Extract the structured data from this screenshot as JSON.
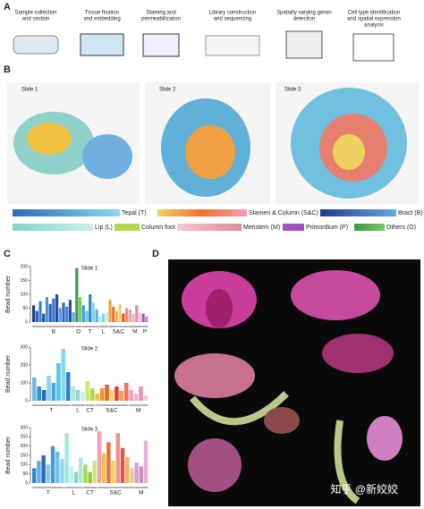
{
  "panel_a": {
    "label": "A",
    "steps": [
      [
        "Sample collection",
        "and section"
      ],
      [
        "Tissue fixation",
        "and embedding"
      ],
      [
        "Staining and",
        "permeabilization"
      ],
      [
        "Library construction",
        "and sequencing"
      ],
      [
        "Spatially varying genes",
        "detection"
      ],
      [
        "Cell type identification",
        "and spatial expression",
        "analysis"
      ]
    ]
  },
  "panel_b": {
    "label": "B",
    "slides": [
      "Slide 1",
      "Slide 2",
      "Slide 3"
    ],
    "legend": [
      "Tepal (T)",
      "Stamen & Column (S&C)",
      "Bract (B)",
      "Lip (L)",
      "Column foot",
      "Meristem (M)",
      "Primordium (P)",
      "Others (O)"
    ]
  },
  "panel_c": {
    "label": "C",
    "y_label": "Bead number",
    "charts": [
      {
        "title": "Slide 1",
        "ylim": [
          0,
          200
        ],
        "yticks": [
          0,
          50,
          100,
          150,
          200
        ],
        "groups": [
          {
            "label": "B",
            "values": [
              60,
              40,
              75,
              30,
              90,
              65,
              85,
              100,
              50,
              70,
              55,
              80,
              35
            ],
            "colors": [
              "#1f3d8a",
              "#2a5db0",
              "#3b7dd8",
              "#1d4f91",
              "#4a8fe0",
              "#2860b8",
              "#3570c8",
              "#1e4ea8",
              "#5a9ae0",
              "#2f68c0",
              "#4680d0",
              "#2255a5",
              "#6aa5e5"
            ]
          },
          {
            "label": "O",
            "values": [
              195,
              90
            ],
            "colors": [
              "#3a9a3a",
              "#7cc66a"
            ]
          },
          {
            "label": "T",
            "values": [
              60,
              40,
              100,
              70,
              45
            ],
            "colors": [
              "#3aa0d8",
              "#70c0e8",
              "#2888c8",
              "#90d0f0",
              "#50b0e0"
            ]
          },
          {
            "label": "L",
            "values": [
              20,
              30,
              35
            ],
            "colors": [
              "#a8e8e8",
              "#80d8d8",
              "#c0f0f0"
            ]
          },
          {
            "label": "S&C",
            "values": [
              80,
              55,
              40,
              65,
              30,
              50
            ],
            "colors": [
              "#f0a030",
              "#f07030",
              "#e8c040",
              "#f0d060",
              "#e85040",
              "#f09060"
            ]
          },
          {
            "label": "M",
            "values": [
              45,
              30,
              60,
              35
            ],
            "colors": [
              "#f0a0b0",
              "#e8b8c0",
              "#f08898",
              "#f8c8d0"
            ]
          },
          {
            "label": "P",
            "values": [
              30,
              20
            ],
            "colors": [
              "#a050c0",
              "#c080d8"
            ]
          }
        ]
      },
      {
        "title": "Slide 2",
        "ylim": [
          0,
          300
        ],
        "yticks": [
          0,
          100,
          200,
          300
        ],
        "groups": [
          {
            "label": "T",
            "values": [
              130,
              80,
              60,
              140,
              100,
              210,
              290,
              160
            ],
            "colors": [
              "#70b8e8",
              "#3a90d0",
              "#2070b8",
              "#90d0f0",
              "#4aa8e0",
              "#60c0e8",
              "#80d8f0",
              "#3080c8"
            ]
          },
          {
            "label": "L",
            "values": [
              80,
              60,
              50
            ],
            "colors": [
              "#b0e8e0",
              "#90d8d0",
              "#c8f0e8"
            ]
          },
          {
            "label": "CT",
            "values": [
              110,
              70
            ],
            "colors": [
              "#c8e870",
              "#a8d850"
            ]
          },
          {
            "label": "S&C",
            "values": [
              40,
              70,
              90,
              60,
              80,
              55,
              100
            ],
            "colors": [
              "#f0c040",
              "#f09030",
              "#e86030",
              "#f0d860",
              "#e84040",
              "#f0a050",
              "#f07060"
            ]
          },
          {
            "label": "M",
            "values": [
              60,
              40,
              80,
              30
            ],
            "colors": [
              "#f0a0c0",
              "#e8b8d0",
              "#f090b0",
              "#f8c8d8"
            ]
          }
        ]
      },
      {
        "title": "Slide 3",
        "ylim": [
          0,
          300
        ],
        "yticks": [
          0,
          50,
          100,
          150,
          200,
          250,
          300
        ],
        "groups": [
          {
            "label": "T",
            "values": [
              80,
              120,
              150,
              100,
              200,
              170,
              130
            ],
            "colors": [
              "#3a80c8",
              "#60b0e0",
              "#2a6ab8",
              "#80c8f0",
              "#4a98d8",
              "#70c0e8",
              "#90d8f0"
            ]
          },
          {
            "label": "L",
            "values": [
              270,
              90,
              60,
              140
            ],
            "colors": [
              "#a0e8d8",
              "#c0f0e8",
              "#80d8c8",
              "#b0e8e0"
            ]
          },
          {
            "label": "CT",
            "values": [
              100,
              60,
              120
            ],
            "colors": [
              "#b0d850",
              "#90c840",
              "#c8e870"
            ]
          },
          {
            "label": "S&C",
            "values": [
              280,
              160,
              220,
              120,
              270,
              190,
              140,
              80
            ],
            "colors": [
              "#f0a0b0",
              "#f0c040",
              "#e87030",
              "#f0d060",
              "#f09090",
              "#e85040",
              "#f0b060",
              "#e8c8a0"
            ]
          },
          {
            "label": "M",
            "values": [
              110,
              90,
              230
            ],
            "colors": [
              "#d8a0c8",
              "#c890b8",
              "#e8b0d8"
            ]
          }
        ]
      }
    ]
  },
  "panel_d": {
    "label": "D",
    "watermark": "知乎 @新姣姣"
  }
}
